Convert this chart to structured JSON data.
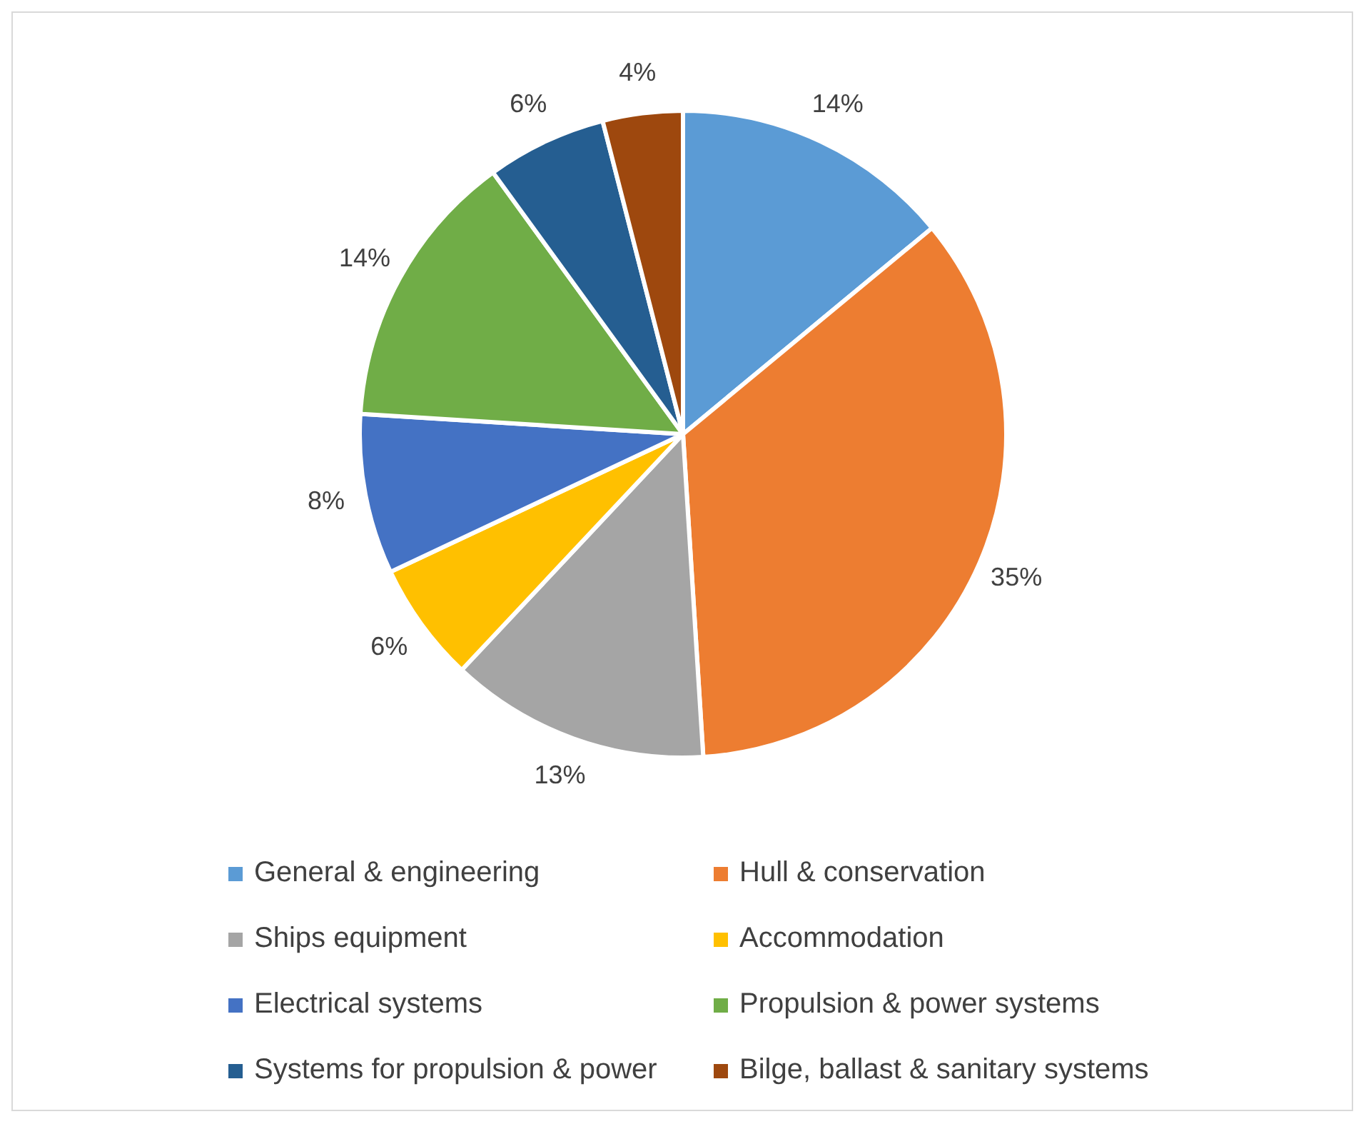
{
  "chart_data": {
    "type": "pie",
    "categories": [
      "General & engineering",
      "Hull & conservation",
      "Ships equipment",
      "Accommodation",
      "Electrical systems",
      "Propulsion & power systems",
      "Systems for propulsion & power",
      "Bilge, ballast & sanitary systems"
    ],
    "values": [
      14,
      35,
      13,
      6,
      8,
      14,
      6,
      4
    ],
    "colors": [
      "#5b9bd5",
      "#ed7d31",
      "#a5a5a5",
      "#ffc000",
      "#4472c4",
      "#70ad47",
      "#255e91",
      "#9e480e"
    ],
    "value_labels": [
      "14%",
      "35%",
      "13%",
      "6%",
      "8%",
      "14%",
      "6%",
      "4%"
    ],
    "legend": "bottom"
  }
}
